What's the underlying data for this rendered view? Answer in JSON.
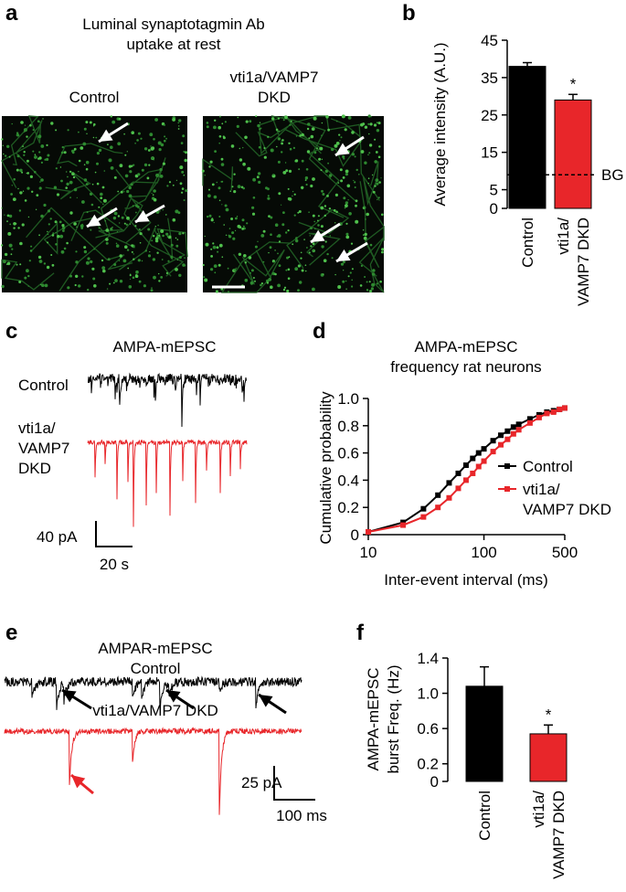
{
  "panels": {
    "a": {
      "label": "a",
      "title": "Luminal synaptotagmin Ab\nuptake at rest",
      "left": "Control",
      "right": "vti1a/VAMP7\nDKD"
    },
    "c": {
      "label": "c",
      "title": "AMPA-mEPSC",
      "control": "Control",
      "dkd": "vti1a/\nVAMP7\nDKD",
      "scale_y": "40 pA",
      "scale_x": "20 s"
    },
    "e": {
      "label": "e",
      "title": "AMPAR-mEPSC\nControl",
      "dkd": "vti1a/VAMP7 DKD",
      "scale_y": "25 pA",
      "scale_x": "100 ms"
    }
  },
  "chart_data": [
    {
      "type": "bar",
      "label": "b",
      "y_label": "Average intensity (A.U.)",
      "categories": [
        "Control",
        "vti1a/\nVAMP7 DKD"
      ],
      "values": [
        38,
        29
      ],
      "errors": [
        1,
        1.5
      ],
      "colors": [
        "#000000",
        "#e8262a"
      ],
      "significance": [
        null,
        "*"
      ],
      "reference_line": {
        "value": 9,
        "label": "BG",
        "style": "dashed"
      },
      "ylim": [
        0,
        45
      ],
      "yticks": [
        0,
        5,
        15,
        25,
        35,
        45
      ]
    },
    {
      "type": "line",
      "label": "d",
      "title": "AMPA-mEPSC\nfrequency rat neurons",
      "x_label": "Inter-event interval (ms)",
      "y_label": "Cumulative probability",
      "x_scale": "log",
      "x": [
        10,
        20,
        30,
        40,
        50,
        60,
        70,
        80,
        90,
        100,
        120,
        140,
        160,
        180,
        200,
        250,
        300,
        350,
        400,
        450,
        500
      ],
      "series": [
        {
          "name": "Control",
          "color": "#000000",
          "values": [
            0.02,
            0.09,
            0.19,
            0.29,
            0.38,
            0.45,
            0.51,
            0.56,
            0.6,
            0.63,
            0.69,
            0.73,
            0.76,
            0.79,
            0.81,
            0.85,
            0.88,
            0.9,
            0.91,
            0.92,
            0.93
          ]
        },
        {
          "name": "vti1a/\nVAMP7 DKD",
          "color": "#e8262a",
          "values": [
            0.02,
            0.07,
            0.13,
            0.2,
            0.27,
            0.34,
            0.4,
            0.45,
            0.5,
            0.54,
            0.61,
            0.66,
            0.7,
            0.74,
            0.77,
            0.82,
            0.86,
            0.89,
            0.9,
            0.92,
            0.93
          ]
        }
      ],
      "xlim": [
        10,
        500
      ],
      "xticks": [
        10,
        100,
        500
      ],
      "ylim": [
        0,
        1
      ],
      "yticks": [
        0,
        0.2,
        0.4,
        0.6,
        0.8,
        {
          "value": 1,
          "label": "1.0"
        }
      ]
    },
    {
      "type": "bar",
      "label": "f",
      "y_label": "AMPA-mEPSC\nburst Freq. (Hz)",
      "categories": [
        "Control",
        "vti1a/\nVAMP7 DKD"
      ],
      "values": [
        1.08,
        0.54
      ],
      "errors": [
        0.22,
        0.1
      ],
      "colors": [
        "#000000",
        "#e8262a"
      ],
      "significance": [
        null,
        "*"
      ],
      "ylim": [
        0,
        1.4
      ],
      "yticks": [
        0,
        0.2,
        0.6,
        {
          "value": 1,
          "label": "1.0"
        },
        1.4
      ]
    }
  ]
}
